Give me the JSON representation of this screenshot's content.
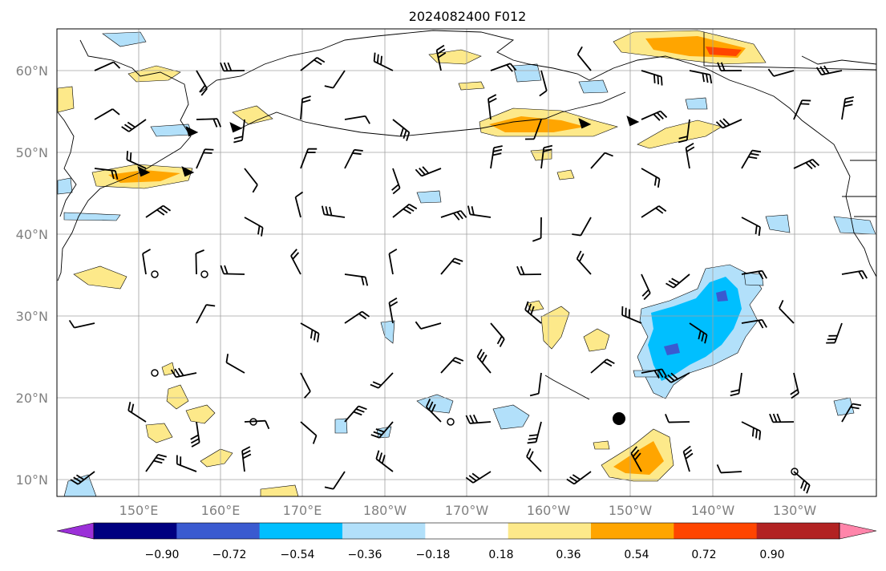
{
  "title": "2024082400 F012",
  "lat_labels": [
    "60°N",
    "50°N",
    "40°N",
    "30°N",
    "20°N",
    "10°N"
  ],
  "lon_labels": [
    "150°E",
    "160°E",
    "170°E",
    "180°W",
    "170°W",
    "160°W",
    "150°W",
    "140°W",
    "130°W"
  ],
  "colorbar": {
    "tick_labels": [
      "−0.90",
      "−0.72",
      "−0.54",
      "−0.36",
      "−0.18",
      "0.18",
      "0.36",
      "0.54",
      "0.72",
      "0.90"
    ],
    "colors": [
      "#9b30d8",
      "#000080",
      "#3a5ad0",
      "#00bfff",
      "#b2e0fa",
      "#ffffff",
      "#fde98a",
      "#ffa500",
      "#ff4500",
      "#b22222",
      "#ff85aa"
    ]
  },
  "colors": {
    "frame": "#000000",
    "grid": "#a0a0a0",
    "coast": "#000000",
    "barb": "#000000",
    "tick_text": "#808080"
  }
}
